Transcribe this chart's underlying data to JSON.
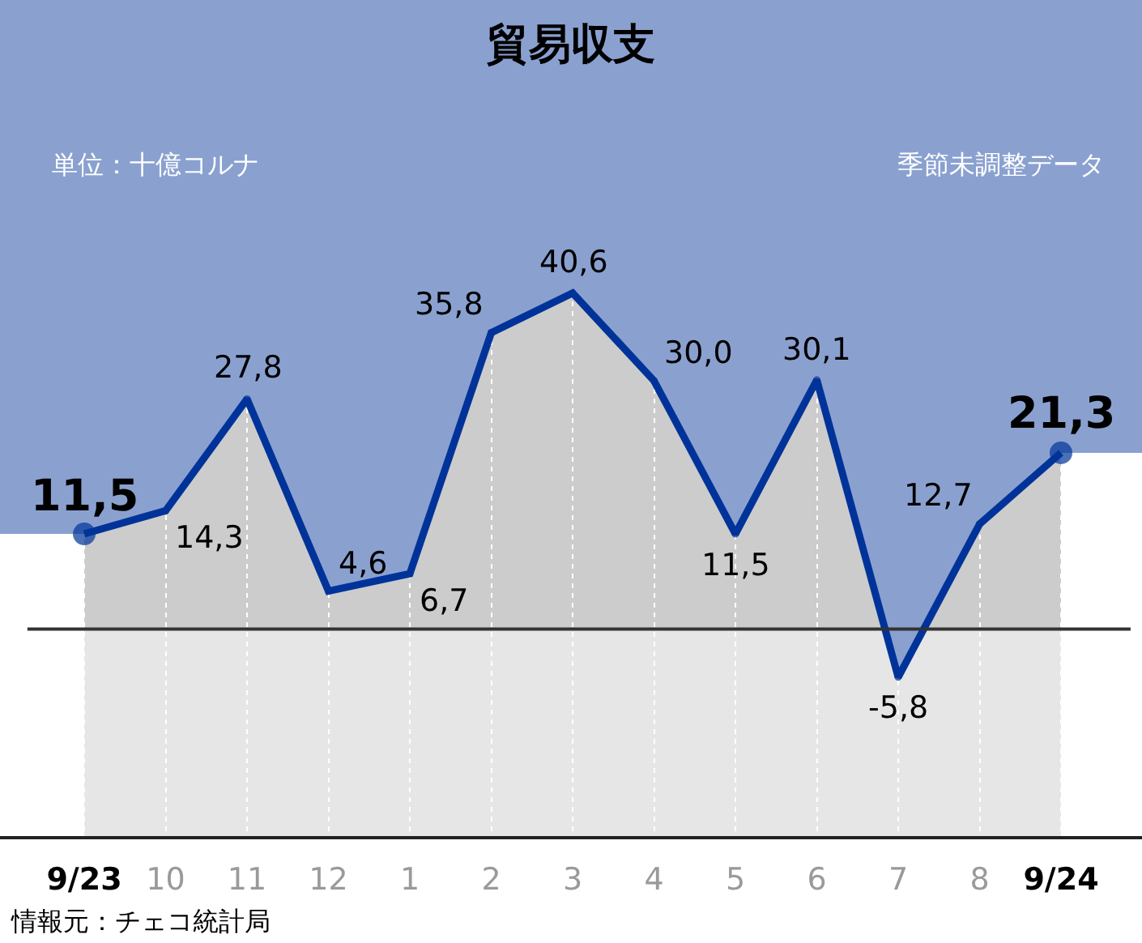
{
  "chart_data": {
    "type": "area",
    "title": "貿易収支",
    "categories": [
      "9/23",
      "10",
      "11",
      "12",
      "1",
      "2",
      "3",
      "4",
      "5",
      "6",
      "7",
      "8",
      "9/24"
    ],
    "series": [
      {
        "color": "#003399",
        "values": [
          11.5,
          14.3,
          27.8,
          4.6,
          6.7,
          35.8,
          40.6,
          30.0,
          11.5,
          30.1,
          -5.8,
          12.7,
          21.3
        ],
        "value_labels": [
          "11,5",
          "14,3",
          "27,8",
          "4,6",
          "6,7",
          "35,8",
          "40,6",
          "30,0",
          "11,5",
          "30,1",
          "-5,8",
          "12,7",
          "21,3"
        ]
      }
    ],
    "ylim": [
      -25,
      76
    ],
    "tick_labels": "x",
    "grid": "x",
    "marker": "circle",
    "ref_lines": [
      {
        "axis": "y",
        "value": 0,
        "color": "#333333"
      }
    ],
    "bands": [
      {
        "axis": "y",
        "from": 0,
        "to": 76,
        "color": "#cccccc"
      },
      {
        "axis": "y",
        "from": -25,
        "to": 0,
        "color": "#e6e6e6"
      }
    ],
    "annotations": [
      "単位：十億コルナ",
      "季節未調整データ",
      "情報元：チェコ統計局"
    ]
  }
}
